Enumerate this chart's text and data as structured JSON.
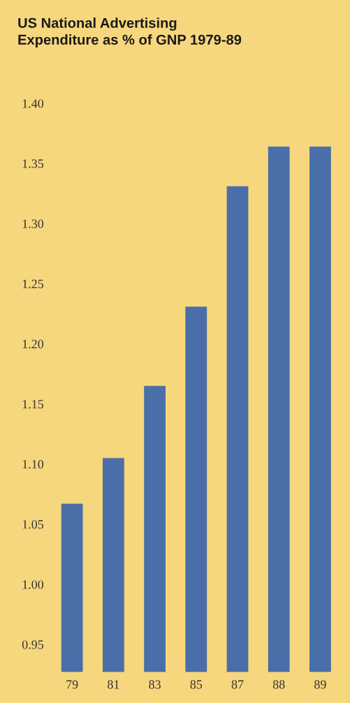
{
  "chart_data": {
    "type": "bar",
    "title": "US National Advertising\nExpenditure as % of GNP 1979-89",
    "categories": [
      "79",
      "81",
      "83",
      "85",
      "87",
      "88",
      "89"
    ],
    "values": [
      1.067,
      1.105,
      1.165,
      1.231,
      1.331,
      1.364,
      1.364
    ],
    "color": "#4a6fa8",
    "ylim": [
      0.927,
      1.4
    ],
    "yticks": [
      {
        "value": 0.95,
        "label": "0.95"
      },
      {
        "value": 1.0,
        "label": "1.00"
      },
      {
        "value": 1.05,
        "label": "1.05"
      },
      {
        "value": 1.1,
        "label": "1.10"
      },
      {
        "value": 1.15,
        "label": "1.15"
      },
      {
        "value": 1.2,
        "label": "1.20"
      },
      {
        "value": 1.25,
        "label": "1.25"
      },
      {
        "value": 1.3,
        "label": "1.30"
      },
      {
        "value": 1.35,
        "label": "1.35"
      },
      {
        "value": 1.4,
        "label": "1.40"
      }
    ],
    "grid": false
  }
}
